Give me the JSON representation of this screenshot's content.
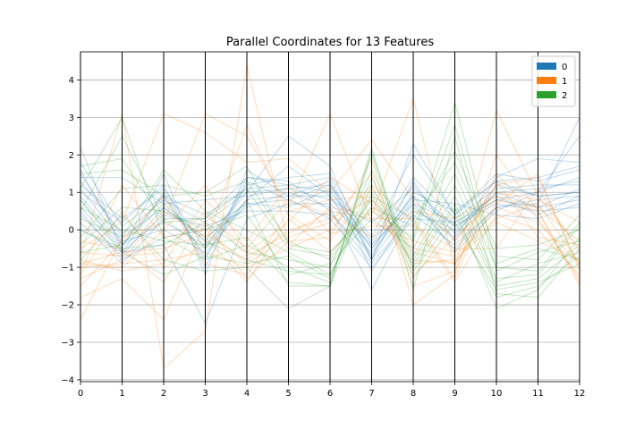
{
  "chart_data": {
    "type": "line",
    "subtype": "parallel-coordinates",
    "title": "Parallel Coordinates for 13 Features",
    "xlabel": "",
    "ylabel": "",
    "x": [
      0,
      1,
      2,
      3,
      4,
      5,
      6,
      7,
      8,
      9,
      10,
      11,
      12
    ],
    "x_ticks": [
      "0",
      "1",
      "2",
      "3",
      "4",
      "5",
      "6",
      "7",
      "8",
      "9",
      "10",
      "11",
      "12"
    ],
    "xlim": [
      0,
      12
    ],
    "ylim": [
      -4.05,
      4.75
    ],
    "y_ticks": [
      -4,
      -3,
      -2,
      -1,
      0,
      1,
      2,
      3,
      4
    ],
    "y_tick_labels": [
      "−4",
      "−3",
      "−2",
      "−1",
      "0",
      "1",
      "2",
      "3",
      "4"
    ],
    "grid": true,
    "legend_position": "top-right",
    "line_opacity": 0.25,
    "series": [
      {
        "name": "0",
        "color": "#1f77b4",
        "class_means": [
          0.9,
          -0.3,
          0.5,
          -0.1,
          0.9,
          1.0,
          0.9,
          -0.6,
          0.8,
          0.0,
          0.9,
          0.8,
          1.1
        ],
        "lines": [
          [
            2.2,
            -0.6,
            1.0,
            -0.8,
            1.4,
            1.2,
            1.4,
            -0.8,
            1.3,
            -0.3,
            1.2,
            0.9,
            1.0
          ],
          [
            1.6,
            -0.4,
            0.2,
            -0.4,
            0.8,
            0.9,
            0.9,
            -0.5,
            0.9,
            0.1,
            0.8,
            1.0,
            1.4
          ],
          [
            1.3,
            -0.1,
            0.8,
            0.2,
            1.0,
            2.5,
            1.7,
            -0.8,
            2.3,
            0.4,
            1.3,
            1.4,
            1.7
          ],
          [
            0.4,
            -0.7,
            0.6,
            -0.2,
            0.6,
            1.0,
            0.6,
            -1.6,
            0.5,
            0.0,
            1.0,
            0.6,
            0.8
          ],
          [
            1.0,
            0.2,
            1.2,
            -1.0,
            1.3,
            0.8,
            1.2,
            -0.5,
            0.9,
            -0.6,
            0.5,
            1.0,
            2.5
          ],
          [
            0.6,
            -0.6,
            -0.4,
            -2.5,
            0.3,
            0.7,
            0.7,
            -0.4,
            0.7,
            0.2,
            0.9,
            0.4,
            0.9
          ],
          [
            1.8,
            0.1,
            0.9,
            0.4,
            1.1,
            1.2,
            1.0,
            -0.3,
            1.4,
            0.3,
            1.1,
            1.2,
            1.2
          ],
          [
            0.2,
            -0.9,
            0.3,
            0.3,
            1.4,
            1.3,
            0.5,
            -0.9,
            0.4,
            -0.4,
            0.6,
            0.7,
            3.0
          ],
          [
            1.1,
            -0.3,
            0.0,
            -0.6,
            0.7,
            0.6,
            1.1,
            -0.7,
            1.0,
            0.5,
            1.3,
            0.9,
            1.0
          ],
          [
            1.4,
            1.4,
            0.7,
            0.8,
            0.9,
            1.1,
            0.8,
            0.2,
            1.1,
            0.1,
            0.7,
            0.5,
            0.6
          ],
          [
            0.8,
            -0.5,
            1.5,
            -1.2,
            1.6,
            0.9,
            1.3,
            -1.1,
            0.6,
            -0.2,
            1.4,
            1.9,
            1.8
          ],
          [
            0.0,
            -0.6,
            0.4,
            0.1,
            0.5,
            0.5,
            0.4,
            -0.6,
            0.8,
            0.7,
            0.4,
            0.3,
            0.7
          ],
          [
            1.2,
            0.3,
            1.1,
            -0.5,
            1.2,
            1.4,
            1.5,
            -0.4,
            1.2,
            -0.1,
            1.0,
            1.1,
            1.3
          ],
          [
            0.5,
            -0.8,
            -0.2,
            0.0,
            0.7,
            0.8,
            0.3,
            -1.0,
            0.3,
            0.2,
            0.8,
            0.6,
            1.1
          ],
          [
            1.5,
            -0.2,
            0.6,
            -0.3,
            1.0,
            1.1,
            1.2,
            -0.2,
            2.0,
            0.4,
            1.5,
            1.3,
            1.6
          ],
          [
            0.9,
            -0.4,
            0.9,
            -0.7,
            0.8,
            1.7,
            0.9,
            -0.8,
            0.7,
            -0.5,
            0.6,
            0.8,
            0.9
          ]
        ]
      },
      {
        "name": "1",
        "color": "#ff7f0e",
        "class_means": [
          -0.9,
          -0.4,
          -0.4,
          0.1,
          -0.7,
          0.1,
          0.2,
          0.5,
          -0.3,
          -0.5,
          0.7,
          0.4,
          -0.7
        ],
        "lines": [
          [
            -0.9,
            -0.6,
            -0.5,
            -0.1,
            -0.8,
            0.0,
            0.3,
            0.8,
            -0.6,
            -0.9,
            0.6,
            0.2,
            -0.9
          ],
          [
            -1.8,
            -1.3,
            -2.4,
            0.2,
            -1.3,
            -0.3,
            -0.2,
            1.9,
            -2.0,
            -1.2,
            2.0,
            0.5,
            -1.5
          ],
          [
            -0.7,
            3.1,
            -3.7,
            -2.7,
            4.4,
            -0.4,
            0.6,
            0.4,
            3.5,
            -1.0,
            3.2,
            0.9,
            -0.5
          ],
          [
            -2.4,
            -0.2,
            0.2,
            3.1,
            2.5,
            0.6,
            3.1,
            0.2,
            -0.3,
            -0.6,
            1.2,
            1.4,
            -1.0
          ],
          [
            -1.0,
            -0.9,
            -0.8,
            -0.6,
            -1.0,
            -0.5,
            0.0,
            1.2,
            0.2,
            -1.4,
            0.4,
            0.0,
            -1.2
          ],
          [
            -0.5,
            0.2,
            3.1,
            2.6,
            1.8,
            1.9,
            1.0,
            2.4,
            0.8,
            -0.3,
            1.0,
            0.8,
            0.2
          ],
          [
            -1.3,
            -0.8,
            0.5,
            -0.2,
            -1.4,
            0.3,
            -0.6,
            0.6,
            -0.9,
            -0.8,
            0.2,
            -0.3,
            -0.8
          ],
          [
            -0.3,
            -0.5,
            -1.4,
            0.4,
            -0.5,
            0.8,
            0.4,
            -0.2,
            0.5,
            0.3,
            0.9,
            0.6,
            -0.3
          ],
          [
            -1.1,
            1.2,
            -0.2,
            0.0,
            -0.9,
            -0.2,
            0.2,
            1.5,
            -1.5,
            -1.1,
            1.5,
            0.3,
            -1.3
          ],
          [
            -0.8,
            -1.1,
            -0.9,
            0.8,
            -0.3,
            1.2,
            -0.1,
            0.1,
            0.1,
            -0.5,
            -0.5,
            1.1,
            -0.6
          ],
          [
            -1.5,
            -0.3,
            0.9,
            -0.9,
            -1.2,
            0.5,
            0.8,
            0.9,
            -1.2,
            -0.2,
            0.8,
            0.5,
            -1.4
          ],
          [
            -0.6,
            -0.7,
            -0.6,
            0.5,
            -0.7,
            -0.1,
            0.5,
            0.3,
            0.3,
            -1.3,
            1.3,
            -0.2,
            -0.4
          ],
          [
            -1.2,
            0.5,
            -1.0,
            -0.4,
            2.8,
            0.4,
            -0.3,
            1.1,
            -0.5,
            -0.7,
            0.3,
            0.7,
            -0.9
          ],
          [
            -0.9,
            -1.0,
            0.0,
            1.2,
            -0.6,
            0.2,
            1.4,
            0.7,
            -0.8,
            -0.9,
            0.7,
            1.5,
            -1.1
          ]
        ]
      },
      {
        "name": "2",
        "color": "#2ca02c",
        "class_means": [
          0.2,
          0.2,
          0.0,
          -0.2,
          -0.3,
          -0.9,
          -1.2,
          1.0,
          -0.6,
          1.0,
          -1.2,
          -1.0,
          -0.3
        ],
        "lines": [
          [
            0.5,
            2.5,
            0.3,
            -0.5,
            0.8,
            -1.5,
            -1.5,
            2.2,
            -1.6,
            2.5,
            -1.7,
            -1.8,
            -0.5
          ],
          [
            0.0,
            -0.5,
            -0.4,
            0.2,
            -0.6,
            -0.8,
            -1.0,
            1.6,
            -0.7,
            1.2,
            -1.3,
            -1.2,
            0.1
          ],
          [
            1.5,
            1.6,
            0.9,
            1.0,
            1.7,
            -0.4,
            -0.6,
            0.5,
            -0.2,
            3.4,
            -0.9,
            -0.5,
            -0.8
          ],
          [
            -0.8,
            0.4,
            -0.8,
            -1.1,
            -1.0,
            -2.1,
            -1.5,
            1.2,
            -1.0,
            0.6,
            -2.1,
            -1.6,
            -0.2
          ],
          [
            0.3,
            -0.2,
            1.6,
            0.5,
            0.0,
            -0.6,
            -1.2,
            0.9,
            0.3,
            1.8,
            -0.7,
            -0.8,
            0.4
          ],
          [
            1.1,
            3.0,
            -0.2,
            -0.8,
            -0.4,
            -1.0,
            -1.4,
            2.0,
            -1.3,
            0.2,
            -1.6,
            -1.4,
            -0.9
          ],
          [
            -0.4,
            0.6,
            0.5,
            0.0,
            0.4,
            -1.2,
            -0.9,
            0.3,
            -0.5,
            1.5,
            -1.0,
            -1.1,
            0.2
          ],
          [
            0.8,
            -0.6,
            -1.2,
            -0.7,
            -0.9,
            -0.7,
            -1.3,
            1.4,
            -0.8,
            0.9,
            -1.4,
            -0.9,
            -0.6
          ],
          [
            -0.2,
            1.1,
            1.2,
            0.9,
            1.3,
            -0.3,
            -0.8,
            0.6,
            0.1,
            2.1,
            -0.5,
            -0.4,
            0.0
          ],
          [
            0.6,
            0.0,
            -0.3,
            -0.4,
            -0.2,
            -1.4,
            -1.5,
            2.1,
            -1.1,
            0.4,
            -1.8,
            -1.5,
            -0.7
          ],
          [
            1.7,
            1.9,
            0.2,
            0.3,
            1.1,
            -0.5,
            -0.7,
            0.8,
            -0.3,
            2.8,
            -1.1,
            -0.6,
            -0.3
          ],
          [
            -0.6,
            -0.4,
            0.7,
            -0.3,
            -0.8,
            -1.1,
            -1.2,
            1.0,
            -0.9,
            0.7,
            -1.5,
            -1.3,
            -0.4
          ]
        ]
      }
    ]
  }
}
